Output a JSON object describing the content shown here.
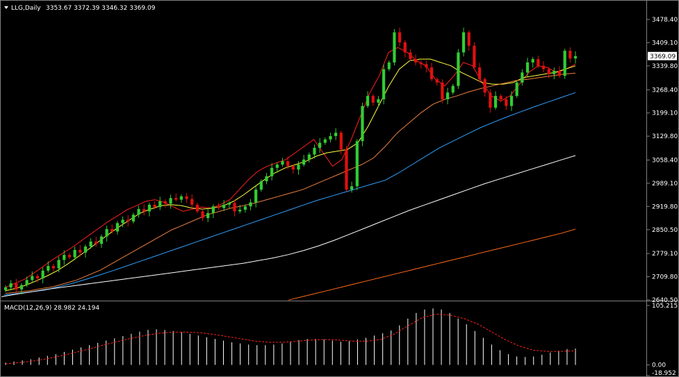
{
  "header": {
    "symbol": "LLG,Daily",
    "ohlc": "3353.67 3372.39 3346.32 3369.09",
    "macd_label": "MACD(12,26,9) 28.982 24.194"
  },
  "colors": {
    "background": "#000000",
    "bull": "#33cc33",
    "bear": "#e01010",
    "ma5": "#ff2020",
    "ma10": "#ffff40",
    "ma20": "#f08040",
    "ma60": "#30a0ff",
    "ma120": "#ffffff",
    "ma250": "#ff6a1a",
    "macd_hist": "#ffffff",
    "macd_signal": "#ff2020"
  },
  "chart_data": [
    {
      "type": "candlestick",
      "title": "LLG,Daily",
      "ylim": [
        2640.5,
        3520
      ],
      "y_ticks": [
        "3478.40",
        "3409.10",
        "3339.80",
        "3268.40",
        "3199.10",
        "3129.80",
        "3058.40",
        "2989.10",
        "2919.80",
        "2850.50",
        "2779.10",
        "2709.80",
        "2640.50"
      ],
      "last_price": "3369.09",
      "series": [
        {
          "name": "price",
          "close": [
            2678,
            2690,
            2672,
            2685,
            2700,
            2712,
            2705,
            2728,
            2742,
            2735,
            2760,
            2775,
            2768,
            2790,
            2782,
            2800,
            2815,
            2808,
            2830,
            2852,
            2845,
            2870,
            2880,
            2875,
            2895,
            2912,
            2905,
            2925,
            2918,
            2935,
            2928,
            2945,
            2940,
            2950,
            2942,
            2925,
            2905,
            2885,
            2900,
            2920,
            2915,
            2925,
            2930,
            2905,
            2910,
            2920,
            2932,
            2970,
            2995,
            3010,
            3035,
            3045,
            3055,
            3040,
            3030,
            3045,
            3060,
            3075,
            3095,
            3110,
            3120,
            3130,
            3140,
            3090,
            2970,
            2980,
            3115,
            3220,
            3250,
            3230,
            3240,
            3330,
            3350,
            3440,
            3410,
            3380,
            3360,
            3350,
            3345,
            3335,
            3300,
            3290,
            3240,
            3260,
            3280,
            3380,
            3440,
            3400,
            3335,
            3300,
            3260,
            3215,
            3250,
            3240,
            3220,
            3250,
            3290,
            3320,
            3350,
            3360,
            3340,
            3330,
            3315,
            3325,
            3310,
            3385,
            3362,
            3369
          ]
        },
        {
          "name": "MA5",
          "values": [
            2678,
            2690,
            2702,
            2720,
            2740,
            2760,
            2778,
            2795,
            2815,
            2835,
            2855,
            2875,
            2892,
            2910,
            2922,
            2935,
            2940,
            2932,
            2918,
            2905,
            2912,
            2918,
            2915,
            2925,
            2940,
            2970,
            3000,
            3025,
            3040,
            3050,
            3060,
            3080,
            3100,
            3120,
            3080,
            3040,
            3060,
            3120,
            3190,
            3260,
            3310,
            3380,
            3395,
            3380,
            3355,
            3340,
            3300,
            3280,
            3310,
            3350,
            3340,
            3290,
            3250,
            3235,
            3250,
            3285,
            3320,
            3340,
            3335,
            3320,
            3330,
            3345
          ]
        },
        {
          "name": "MA10",
          "values": [
            2668,
            2675,
            2685,
            2698,
            2712,
            2728,
            2748,
            2770,
            2792,
            2815,
            2838,
            2860,
            2880,
            2900,
            2912,
            2922,
            2925,
            2922,
            2915,
            2912,
            2915,
            2922,
            2935,
            2955,
            2978,
            3000,
            3020,
            3035,
            3045,
            3055,
            3070,
            3080,
            3085,
            3090,
            3110,
            3160,
            3220,
            3280,
            3330,
            3355,
            3360,
            3360,
            3350,
            3340,
            3320,
            3305,
            3290,
            3285,
            3285,
            3290,
            3305,
            3310,
            3315,
            3320,
            3330,
            3340
          ]
        },
        {
          "name": "MA20",
          "values": [
            2660,
            2664,
            2668,
            2674,
            2680,
            2690,
            2700,
            2715,
            2730,
            2750,
            2770,
            2790,
            2810,
            2830,
            2850,
            2865,
            2880,
            2895,
            2905,
            2915,
            2922,
            2930,
            2940,
            2950,
            2960,
            2970,
            2985,
            3000,
            3015,
            3030,
            3045,
            3065,
            3100,
            3140,
            3170,
            3200,
            3225,
            3240,
            3250,
            3262,
            3272,
            3280,
            3288,
            3296,
            3300,
            3305,
            3310,
            3315,
            3318
          ]
        },
        {
          "name": "MA60",
          "values": [
            2655,
            2660,
            2665,
            2670,
            2680,
            2690,
            2702,
            2715,
            2728,
            2742,
            2756,
            2770,
            2784,
            2798,
            2812,
            2826,
            2840,
            2854,
            2868,
            2882,
            2896,
            2910,
            2924,
            2938,
            2950,
            2962,
            2974,
            2986,
            2998,
            3020,
            3045,
            3070,
            3095,
            3115,
            3135,
            3155,
            3172,
            3188,
            3203,
            3218,
            3232,
            3246,
            3260
          ]
        },
        {
          "name": "MA120",
          "values": [
            2650,
            2658,
            2665,
            2672,
            2678,
            2684,
            2690,
            2696,
            2702,
            2708,
            2714,
            2720,
            2726,
            2732,
            2738,
            2744,
            2750,
            2758,
            2766,
            2776,
            2788,
            2802,
            2818,
            2836,
            2854,
            2872,
            2890,
            2908,
            2924,
            2940,
            2956,
            2972,
            2988,
            3002,
            3016,
            3030,
            3044,
            3058,
            3072
          ]
        },
        {
          "name": "MA250",
          "values": [
            2640,
            2650,
            2660,
            2670,
            2680,
            2690,
            2700,
            2710,
            2720,
            2730,
            2740,
            2750,
            2760,
            2770,
            2780,
            2790,
            2800,
            2810,
            2820,
            2830,
            2840,
            2852
          ]
        }
      ]
    },
    {
      "type": "bar",
      "title": "MACD(12,26,9) 28.982 24.194",
      "ylim": [
        -18.952,
        105.215
      ],
      "y_ticks": [
        "105.215",
        "0.00",
        "-18.952"
      ],
      "series": [
        {
          "name": "histogram",
          "values": [
            4,
            6,
            8,
            10,
            13,
            16,
            19,
            23,
            27,
            31,
            35,
            39,
            43,
            47,
            51,
            55,
            59,
            62,
            63,
            62,
            60,
            58,
            55,
            52,
            49,
            46,
            43,
            40,
            38,
            36,
            35,
            35,
            36,
            38,
            41,
            44,
            46,
            46,
            45,
            43,
            41,
            42,
            45,
            48,
            52,
            56,
            61,
            70,
            82,
            92,
            98,
            100,
            98,
            92,
            82,
            72,
            60,
            48,
            36,
            26,
            19,
            15,
            14,
            15,
            18,
            22,
            25,
            28,
            29
          ]
        },
        {
          "name": "signal",
          "values": [
            2,
            4,
            7,
            11,
            16,
            22,
            28,
            35,
            41,
            47,
            52,
            56,
            58,
            58,
            57,
            54,
            50,
            46,
            42,
            40,
            40,
            42,
            44,
            45,
            44,
            42,
            42,
            45,
            55,
            70,
            84,
            90,
            88,
            82,
            72,
            58,
            44,
            33,
            26,
            24,
            24,
            25
          ]
        }
      ]
    }
  ]
}
